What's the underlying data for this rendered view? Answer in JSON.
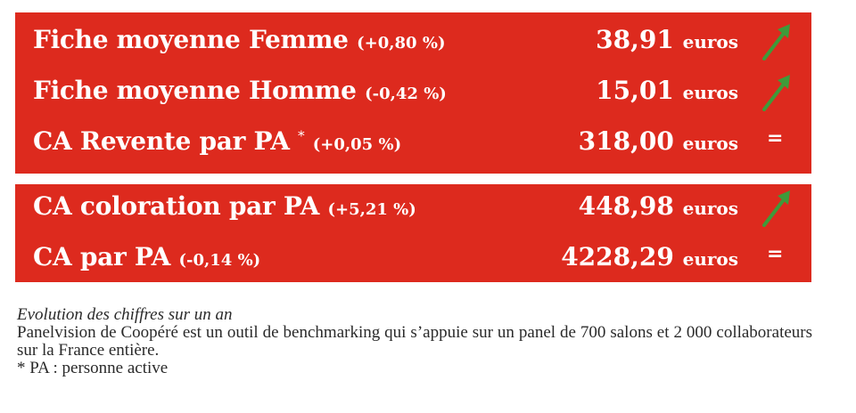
{
  "panel_top": {
    "rows": [
      {
        "label": "Fiche moyenne Femme",
        "star": "",
        "change": "(+0,80 %)",
        "value": "38,91",
        "unit": "euros",
        "trend": "up-arrow-icon"
      },
      {
        "label": "Fiche moyenne Homme",
        "star": "",
        "change": "(-0,42 %)",
        "value": "15,01",
        "unit": "euros",
        "trend": "up-arrow-icon"
      },
      {
        "label": "CA Revente par PA",
        "star": "*",
        "change": "(+0,05 %)",
        "value": "318,00",
        "unit": "euros",
        "trend": "=",
        "trend_symbol": "="
      }
    ]
  },
  "panel_bottom": {
    "rows": [
      {
        "label": "CA coloration par  PA",
        "star": "",
        "change": "(+5,21 %)",
        "value": "448,98",
        "unit": "euros",
        "trend": "up-arrow-icon"
      },
      {
        "label": "CA par  PA",
        "star": "",
        "change": "(-0,14 %)",
        "value": "4228,29",
        "unit": "euros",
        "trend": "=",
        "trend_symbol": "="
      }
    ]
  },
  "caption": {
    "heading": "Evolution des chiffres sur un an",
    "description": "Panelvision de Coopéré est un outil de benchmarking qui s’appuie sur un panel de 700 salons et 2 000 collaborateurs sur la France entière.",
    "footnote": "* PA : personne active"
  },
  "colors": {
    "panel_bg": "#dd2a1e",
    "arrow": "#3f9a3a",
    "text_on_panel": "#ffffff"
  }
}
